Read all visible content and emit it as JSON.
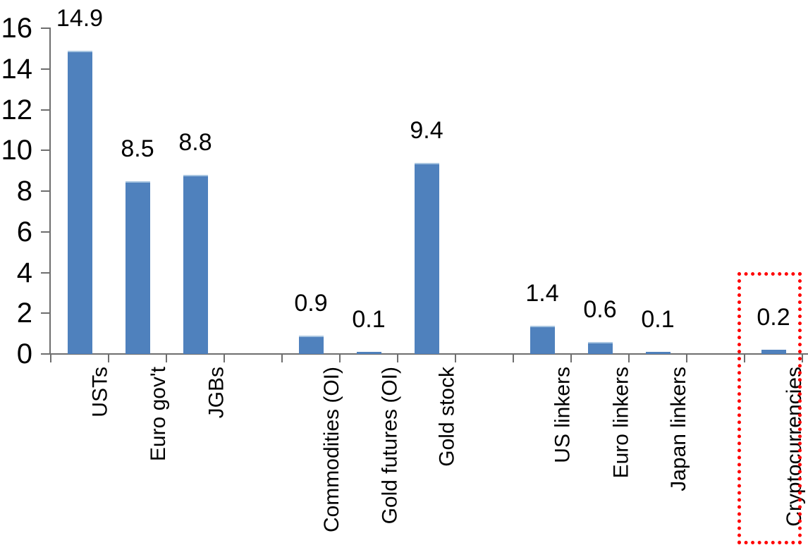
{
  "chart_data": {
    "type": "bar",
    "title": "",
    "xlabel": "",
    "ylabel": "",
    "categories": [
      "USTs",
      "Euro gov't",
      "JGBs",
      "",
      "Commodities (OI)",
      "Gold futures (OI)",
      "Gold stock",
      "",
      "US linkers",
      "Euro linkers",
      "Japan linkers",
      "",
      "Cryptocurrencies"
    ],
    "values": [
      14.9,
      8.5,
      8.8,
      null,
      0.9,
      0.1,
      9.4,
      null,
      1.4,
      0.6,
      0.1,
      null,
      0.2
    ],
    "data_labels": [
      "14.9",
      "8.5",
      "8.8",
      "",
      "0.9",
      "0.1",
      "9.4",
      "",
      "1.4",
      "0.6",
      "0.1",
      "",
      "0.2"
    ],
    "ylim": [
      0,
      16
    ],
    "yticks": [
      0,
      2,
      4,
      6,
      8,
      10,
      12,
      14,
      16
    ],
    "grid": false,
    "legend": "none",
    "category_label_rotation": -90,
    "bar_color": "#4F81BD",
    "bar_top_edge_color": "#A9C6E1",
    "axis_color": "#6E6E6E",
    "text_color": "#000000",
    "annotation": {
      "type": "highlight-box",
      "target_category": "Cryptocurrencies",
      "border_color": "#FF0000",
      "border_style": "dotted",
      "note": "red dotted rectangle around the Cryptocurrencies bar, value label and axis label"
    }
  }
}
